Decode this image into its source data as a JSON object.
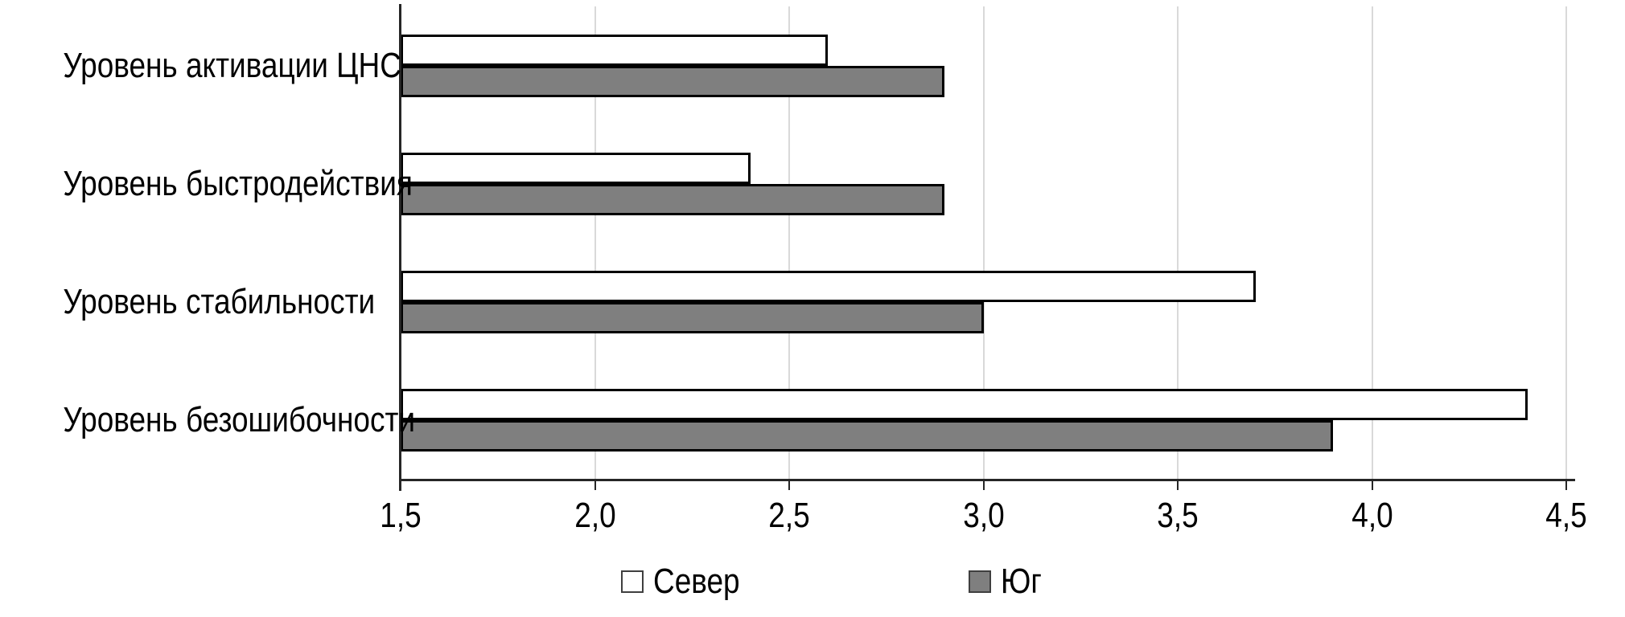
{
  "chart_data": {
    "type": "bar",
    "orientation": "horizontal",
    "title": "",
    "categories": [
      "Уровень активации ЦНС",
      "Уровень быстродействия",
      "Уровень стабильности",
      "Уровень безошибочности"
    ],
    "series": [
      {
        "name": "Север",
        "color": "#ffffff",
        "border_color": "#000000",
        "values": [
          2.6,
          2.4,
          3.7,
          4.4
        ]
      },
      {
        "name": "Юг",
        "color": "#7f7f7f",
        "border_color": "#000000",
        "values": [
          2.9,
          2.9,
          3.0,
          3.9
        ]
      }
    ],
    "xlim": [
      1.5,
      4.5
    ],
    "x_ticks": [
      1.5,
      2.0,
      2.5,
      3.0,
      3.5,
      4.0,
      4.5
    ],
    "x_tick_labels": [
      "1,5",
      "2,0",
      "2,5",
      "3,0",
      "3,5",
      "4,0",
      "4,5"
    ],
    "grid": true,
    "legend_position": "bottom"
  },
  "style_colors": {
    "gridline": "#d9d9d9",
    "axis": "#262626",
    "text": "#000000",
    "background": "#ffffff"
  }
}
